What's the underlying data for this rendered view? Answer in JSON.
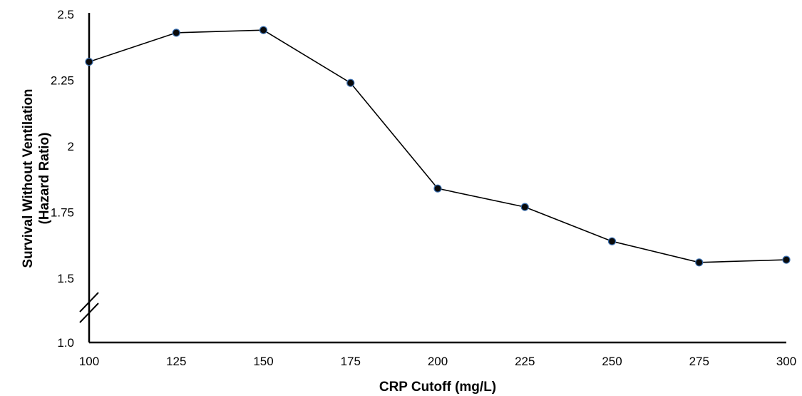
{
  "chart_data": {
    "type": "line",
    "title": "",
    "xlabel": "CRP Cutoff (mg/L)",
    "ylabel_line1": "Survival Without Ventilation",
    "ylabel_line2": "(Hazard Ratio)",
    "x": [
      100,
      125,
      150,
      175,
      200,
      225,
      250,
      275,
      300
    ],
    "x_tick_labels": [
      "100",
      "125",
      "150",
      "175",
      "200",
      "225",
      "250",
      "275",
      "300"
    ],
    "y_tick_labels": [
      "2.5",
      "2.25",
      "2",
      "1.75",
      "1.5",
      "1.0"
    ],
    "y_ticks": [
      2.5,
      2.25,
      2.0,
      1.75,
      1.5,
      1.0
    ],
    "ylim": [
      1.0,
      2.5
    ],
    "axis_break": true,
    "grid": false,
    "series": [
      {
        "values": [
          2.32,
          2.43,
          2.44,
          2.24,
          1.84,
          1.77,
          1.64,
          1.56,
          1.57
        ],
        "color": "#000000",
        "marker_edge_color": "#3a6fb0"
      }
    ]
  }
}
